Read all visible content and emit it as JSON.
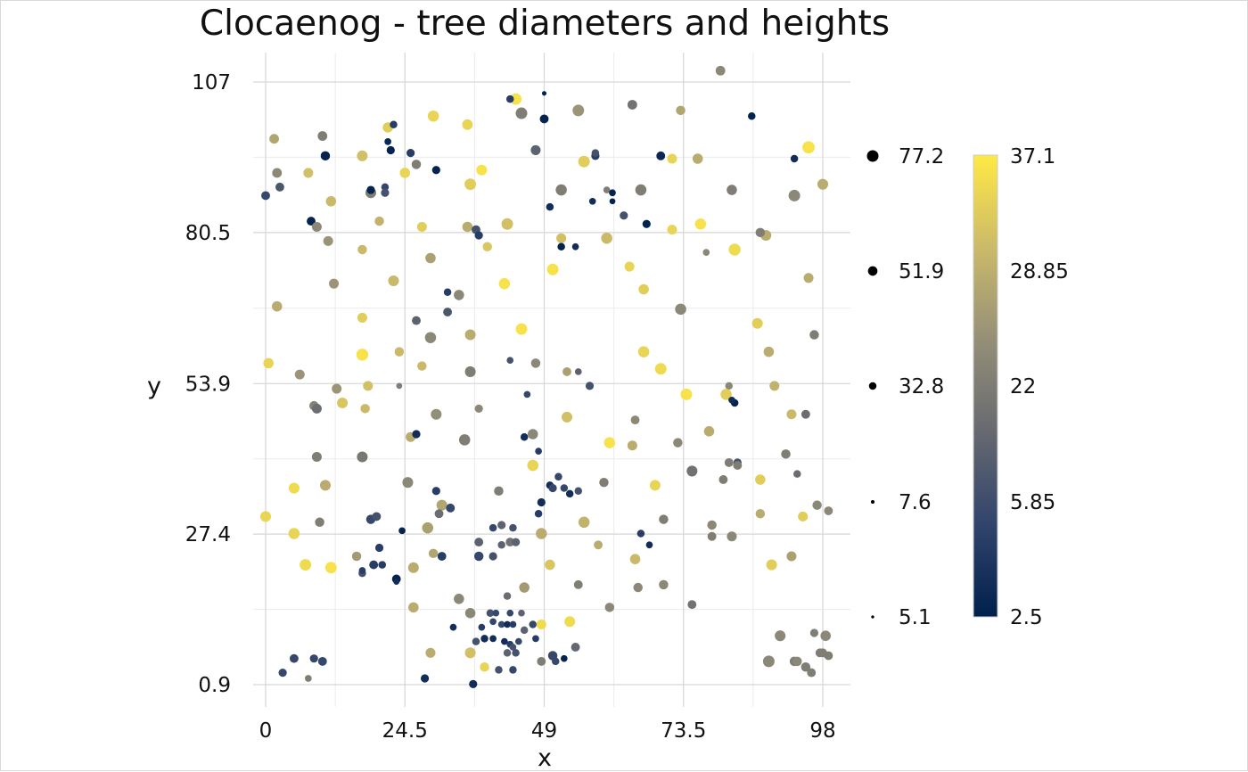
{
  "chart_data": {
    "type": "scatter",
    "title": "Clocaenog - tree diameters and heights",
    "xlabel": "x",
    "ylabel": "y",
    "xlim": [
      -2.5,
      103
    ],
    "ylim": [
      -2,
      110
    ],
    "x_ticks": [
      0,
      24.5,
      49,
      73.5,
      98
    ],
    "x_tick_labels": [
      "0",
      "24.5",
      "49",
      "73.5",
      "98"
    ],
    "y_ticks": [
      0.9,
      27.4,
      53.9,
      80.5,
      107
    ],
    "y_tick_labels": [
      "0.9",
      "27.4",
      "53.9",
      "80.5",
      "107"
    ],
    "grid": true,
    "size_legend": {
      "title": "",
      "placement": "right",
      "values": [
        77.2,
        51.9,
        32.8,
        7.6,
        5.1
      ],
      "labels": [
        "77.2",
        "51.9",
        "32.8",
        "7.6",
        "5.1"
      ]
    },
    "color_legend": {
      "title": "",
      "placement": "right",
      "values": [
        37.1,
        28.85,
        22,
        5.85,
        2.5
      ],
      "labels": [
        "37.1",
        "28.85",
        "22",
        "5.85",
        "2.5"
      ],
      "min": 2.5,
      "max": 37.1,
      "colors": [
        "#00204d",
        "#31446b",
        "#666970",
        "#958f78",
        "#cbba69",
        "#ffe945"
      ]
    },
    "points": [
      [
        44,
        104,
        60,
        36
      ],
      [
        49,
        105,
        4,
        3
      ],
      [
        1.5,
        97,
        38,
        27
      ],
      [
        10,
        97.5,
        38,
        20
      ],
      [
        21.5,
        99,
        45,
        33
      ],
      [
        22.5,
        99.5,
        20,
        8
      ],
      [
        29.5,
        101,
        55,
        34
      ],
      [
        35.5,
        99.5,
        48,
        34
      ],
      [
        45,
        101.5,
        60,
        20
      ],
      [
        49,
        100.5,
        30,
        3
      ],
      [
        55,
        102,
        60,
        24
      ],
      [
        64.5,
        103,
        38,
        18
      ],
      [
        73,
        102,
        35,
        27
      ],
      [
        80,
        109,
        38,
        22
      ],
      [
        85.5,
        101,
        20,
        3
      ],
      [
        2,
        91,
        38,
        22
      ],
      [
        7.5,
        91,
        40,
        31
      ],
      [
        10.5,
        94,
        35,
        3
      ],
      [
        17,
        94,
        50,
        31
      ],
      [
        21.5,
        96.5,
        15,
        4
      ],
      [
        22,
        95,
        25,
        3
      ],
      [
        24.5,
        91,
        45,
        34
      ],
      [
        25.5,
        94.5,
        25,
        8
      ],
      [
        26.5,
        92.5,
        35,
        20
      ],
      [
        30,
        91.5,
        25,
        3
      ],
      [
        38,
        91.5,
        50,
        36
      ],
      [
        43,
        104,
        20,
        8
      ],
      [
        47.5,
        95,
        40,
        15
      ],
      [
        50,
        85,
        20,
        5
      ],
      [
        56,
        93,
        60,
        33
      ],
      [
        58,
        94,
        25,
        8
      ],
      [
        58,
        94.5,
        20,
        12
      ],
      [
        69.5,
        94,
        30,
        4
      ],
      [
        71.5,
        93.5,
        40,
        34
      ],
      [
        76,
        93.5,
        45,
        28
      ],
      [
        82,
        88,
        45,
        20
      ],
      [
        93,
        93.5,
        20,
        5
      ],
      [
        95.5,
        95.5,
        70,
        36
      ],
      [
        98,
        89,
        50,
        28
      ],
      [
        0,
        87,
        30,
        10
      ],
      [
        2.5,
        88.5,
        30,
        13
      ],
      [
        11.5,
        86,
        45,
        30
      ],
      [
        18.5,
        87.5,
        50,
        20
      ],
      [
        18.5,
        88,
        25,
        3
      ],
      [
        21,
        88.5,
        20,
        10
      ],
      [
        21,
        87.5,
        25,
        12
      ],
      [
        36,
        89,
        60,
        33
      ],
      [
        52,
        88,
        55,
        20
      ],
      [
        60,
        88,
        15,
        20
      ],
      [
        61,
        87.5,
        15,
        3
      ],
      [
        57.5,
        86,
        15,
        5
      ],
      [
        61,
        86,
        10,
        3
      ],
      [
        66,
        88,
        55,
        20
      ],
      [
        88,
        80,
        50,
        28
      ],
      [
        93,
        87,
        60,
        22
      ],
      [
        8,
        82.5,
        30,
        3
      ],
      [
        9,
        81.5,
        40,
        22
      ],
      [
        20,
        82.5,
        35,
        29
      ],
      [
        27.5,
        81.5,
        40,
        33
      ],
      [
        35.5,
        81.5,
        45,
        28
      ],
      [
        37,
        81,
        30,
        12
      ],
      [
        37.5,
        80,
        25,
        8
      ],
      [
        42.5,
        82,
        60,
        31
      ],
      [
        52,
        79.5,
        40,
        31
      ],
      [
        60,
        79.5,
        55,
        30
      ],
      [
        63,
        83.5,
        25,
        12
      ],
      [
        67,
        82,
        25,
        3
      ],
      [
        71.5,
        81,
        40,
        34
      ],
      [
        76.5,
        82,
        55,
        36
      ],
      [
        87,
        80.5,
        35,
        20
      ],
      [
        52,
        78,
        20,
        3
      ],
      [
        54.5,
        78,
        15,
        5
      ],
      [
        11,
        79,
        40,
        24
      ],
      [
        17,
        77.5,
        35,
        30
      ],
      [
        29,
        76,
        45,
        26
      ],
      [
        39,
        78,
        35,
        32
      ],
      [
        64,
        74.5,
        40,
        34
      ],
      [
        50.5,
        74,
        60,
        36
      ],
      [
        77.5,
        77,
        15,
        22
      ],
      [
        82.5,
        77.5,
        65,
        35
      ],
      [
        12,
        71.5,
        40,
        24
      ],
      [
        22.5,
        72,
        50,
        30
      ],
      [
        32,
        70,
        20,
        8
      ],
      [
        34,
        69.5,
        45,
        22
      ],
      [
        42,
        71.5,
        55,
        36
      ],
      [
        66.5,
        70.5,
        45,
        33
      ],
      [
        95.5,
        72.5,
        40,
        28
      ],
      [
        2,
        67.5,
        45,
        28
      ],
      [
        17,
        65.5,
        40,
        33
      ],
      [
        26.5,
        65,
        30,
        15
      ],
      [
        32,
        66.5,
        30,
        13
      ],
      [
        29,
        62,
        55,
        22
      ],
      [
        36,
        62.5,
        50,
        28
      ],
      [
        45,
        63.5,
        60,
        36
      ],
      [
        73,
        67,
        55,
        22
      ],
      [
        86.5,
        64.5,
        50,
        33
      ],
      [
        96.5,
        62.5,
        35,
        20
      ],
      [
        0.5,
        57.5,
        45,
        34
      ],
      [
        6,
        55.5,
        40,
        24
      ],
      [
        17,
        59,
        65,
        36
      ],
      [
        27.5,
        57,
        35,
        30
      ],
      [
        23.5,
        59.5,
        35,
        30
      ],
      [
        36,
        56,
        50,
        20
      ],
      [
        47.5,
        57.5,
        35,
        22
      ],
      [
        53,
        56,
        30,
        26
      ],
      [
        55,
        56,
        15,
        15
      ],
      [
        66.5,
        59.5,
        55,
        34
      ],
      [
        69.5,
        56.5,
        60,
        35
      ],
      [
        88.5,
        59.5,
        45,
        28
      ],
      [
        12.5,
        53,
        40,
        24
      ],
      [
        18,
        53.5,
        40,
        31
      ],
      [
        23.5,
        53.5,
        10,
        20
      ],
      [
        43,
        58,
        15,
        12
      ],
      [
        46,
        52,
        15,
        10
      ],
      [
        57,
        53.5,
        25,
        12
      ],
      [
        74,
        52,
        60,
        36
      ],
      [
        81.5,
        53.5,
        20,
        22
      ],
      [
        81,
        52,
        55,
        33
      ],
      [
        89.5,
        53.5,
        40,
        29
      ],
      [
        82.5,
        50.5,
        20,
        3
      ],
      [
        82,
        51,
        15,
        5
      ],
      [
        8.5,
        50,
        35,
        21
      ],
      [
        9,
        49.5,
        40,
        17
      ],
      [
        13.5,
        50.5,
        50,
        32
      ],
      [
        17.5,
        49.5,
        35,
        30
      ],
      [
        30,
        48.5,
        50,
        23
      ],
      [
        37.5,
        49.5,
        25,
        22
      ],
      [
        53,
        48,
        50,
        31
      ],
      [
        65,
        47.5,
        30,
        22
      ],
      [
        92.5,
        48.5,
        40,
        30
      ],
      [
        95,
        48.5,
        30,
        17
      ],
      [
        25.5,
        44.5,
        40,
        28
      ],
      [
        26.5,
        45,
        25,
        5
      ],
      [
        35,
        44,
        55,
        20
      ],
      [
        45.5,
        44.5,
        20,
        5
      ],
      [
        47,
        45,
        45,
        22
      ],
      [
        60.5,
        43.5,
        55,
        36
      ],
      [
        64.5,
        43,
        40,
        28
      ],
      [
        72.5,
        43.5,
        35,
        22
      ],
      [
        78,
        45.5,
        45,
        28
      ],
      [
        48,
        42,
        15,
        8
      ],
      [
        9,
        41,
        40,
        20
      ],
      [
        17,
        41,
        50,
        19
      ],
      [
        47,
        39.5,
        55,
        34
      ],
      [
        51.5,
        37.5,
        20,
        10
      ],
      [
        81.5,
        40,
        30,
        20
      ],
      [
        83,
        40,
        25,
        12
      ],
      [
        83,
        39.5,
        30,
        20
      ],
      [
        91.5,
        41.5,
        35,
        20
      ],
      [
        93.5,
        38,
        20,
        17
      ],
      [
        75,
        38.5,
        50,
        18
      ],
      [
        80.5,
        37,
        30,
        20
      ],
      [
        87,
        37,
        45,
        33
      ],
      [
        25,
        36.5,
        50,
        22
      ],
      [
        30,
        35,
        25,
        8
      ],
      [
        31,
        32.5,
        50,
        27
      ],
      [
        32.5,
        32,
        30,
        10
      ],
      [
        30.5,
        31,
        30,
        17
      ],
      [
        41,
        35,
        35,
        20
      ],
      [
        50,
        36,
        20,
        5
      ],
      [
        50.5,
        35.5,
        25,
        10
      ],
      [
        52.5,
        35.5,
        20,
        10
      ],
      [
        53.5,
        34.5,
        20,
        5
      ],
      [
        55,
        35,
        20,
        12
      ],
      [
        59.5,
        36.5,
        35,
        20
      ],
      [
        68.5,
        36,
        50,
        34
      ],
      [
        5,
        35.5,
        50,
        35
      ],
      [
        10.5,
        36,
        50,
        28
      ],
      [
        97,
        32.5,
        35,
        22
      ],
      [
        99,
        31.5,
        30,
        22
      ],
      [
        94.5,
        30.5,
        40,
        33
      ],
      [
        48.5,
        33,
        25,
        5
      ],
      [
        48,
        31,
        20,
        8
      ],
      [
        0,
        30.5,
        50,
        34
      ],
      [
        18.5,
        30,
        35,
        10
      ],
      [
        19.5,
        30.5,
        30,
        12
      ],
      [
        24,
        28,
        15,
        3
      ],
      [
        28.5,
        28.5,
        55,
        26
      ],
      [
        40,
        28.5,
        20,
        10
      ],
      [
        41.5,
        29,
        25,
        15
      ],
      [
        43.5,
        28.5,
        20,
        12
      ],
      [
        48.5,
        27.5,
        55,
        28
      ],
      [
        56,
        29.5,
        55,
        29
      ],
      [
        70,
        30,
        35,
        20
      ],
      [
        78.5,
        29,
        35,
        22
      ],
      [
        87,
        31,
        35,
        28
      ],
      [
        9.5,
        29.5,
        35,
        20
      ],
      [
        5,
        27.5,
        55,
        34
      ],
      [
        41.5,
        25.5,
        20,
        15
      ],
      [
        58.5,
        25.5,
        30,
        28
      ],
      [
        66,
        27.5,
        20,
        8
      ],
      [
        67.5,
        25.5,
        15,
        5
      ],
      [
        78.5,
        27,
        30,
        20
      ],
      [
        82,
        27,
        40,
        22
      ],
      [
        37.5,
        26,
        30,
        15
      ],
      [
        43,
        26,
        30,
        18
      ],
      [
        44,
        26,
        25,
        15
      ],
      [
        16,
        23.5,
        35,
        25
      ],
      [
        20,
        25,
        25,
        8
      ],
      [
        29.5,
        24,
        35,
        27
      ],
      [
        31,
        23.5,
        30,
        8
      ],
      [
        37.5,
        23.5,
        35,
        10
      ],
      [
        40,
        23.5,
        25,
        12
      ],
      [
        65,
        23,
        45,
        30
      ],
      [
        92.5,
        23.5,
        40,
        26
      ],
      [
        89,
        22,
        50,
        33
      ],
      [
        7,
        22,
        60,
        35
      ],
      [
        11.5,
        21.5,
        60,
        36
      ],
      [
        17,
        20.5,
        20,
        12
      ],
      [
        19,
        22,
        30,
        8
      ],
      [
        20.5,
        22,
        20,
        8
      ],
      [
        23,
        19.5,
        30,
        3
      ],
      [
        26,
        21.5,
        50,
        28
      ],
      [
        50,
        22,
        45,
        32
      ],
      [
        45.5,
        18,
        45,
        25
      ],
      [
        42.5,
        16.5,
        20,
        17
      ],
      [
        65.5,
        18,
        35,
        22
      ],
      [
        70,
        18.5,
        35,
        22
      ],
      [
        17,
        21,
        15,
        8
      ],
      [
        23,
        19,
        10,
        5
      ],
      [
        26,
        14.5,
        45,
        28
      ],
      [
        36,
        13.5,
        45,
        22
      ],
      [
        39.5,
        13.5,
        20,
        12
      ],
      [
        40.5,
        13.5,
        15,
        10
      ],
      [
        43,
        13.5,
        15,
        10
      ],
      [
        45,
        13.5,
        15,
        15
      ],
      [
        60.5,
        14.5,
        35,
        22
      ],
      [
        75,
        15,
        30,
        18
      ],
      [
        33,
        11,
        15,
        5
      ],
      [
        38,
        11,
        15,
        8
      ],
      [
        40,
        12,
        15,
        10
      ],
      [
        41.5,
        11.5,
        15,
        10
      ],
      [
        42.5,
        11.5,
        15,
        5
      ],
      [
        43.5,
        11.5,
        15,
        8
      ],
      [
        45.5,
        10.5,
        20,
        15
      ],
      [
        47,
        11.5,
        20,
        10
      ],
      [
        48.5,
        11.5,
        40,
        35
      ],
      [
        53.5,
        12,
        50,
        35
      ],
      [
        37,
        8.5,
        20,
        12
      ],
      [
        38.5,
        9,
        20,
        5
      ],
      [
        40,
        9,
        15,
        5
      ],
      [
        42,
        8.5,
        15,
        5
      ],
      [
        43,
        8,
        15,
        8
      ],
      [
        44.5,
        8.5,
        15,
        10
      ],
      [
        47.5,
        9,
        15,
        8
      ],
      [
        43.5,
        7.5,
        15,
        12
      ],
      [
        42.5,
        6.5,
        20,
        15
      ],
      [
        44,
        6.5,
        20,
        12
      ],
      [
        29,
        6.5,
        40,
        28
      ],
      [
        36,
        6.5,
        50,
        31
      ],
      [
        48.5,
        5,
        30,
        20
      ],
      [
        50.5,
        6,
        35,
        10
      ],
      [
        51,
        5,
        20,
        10
      ],
      [
        52.5,
        5.5,
        15,
        3
      ],
      [
        54.5,
        7.5,
        30,
        16
      ],
      [
        41,
        3.5,
        20,
        12
      ],
      [
        43.5,
        3.5,
        20,
        10
      ],
      [
        38.5,
        4,
        35,
        34
      ],
      [
        5,
        5.5,
        30,
        10
      ],
      [
        8.5,
        5.5,
        25,
        10
      ],
      [
        10,
        5,
        30,
        10
      ],
      [
        3,
        3,
        25,
        10
      ],
      [
        7.5,
        2,
        15,
        20
      ],
      [
        28,
        2,
        25,
        5
      ],
      [
        36.5,
        1,
        25,
        5
      ],
      [
        88.5,
        5,
        60,
        22
      ],
      [
        90.5,
        9.5,
        50,
        22
      ],
      [
        93,
        5,
        35,
        20
      ],
      [
        93.5,
        5,
        35,
        22
      ],
      [
        95,
        4,
        35,
        20
      ],
      [
        96,
        3,
        30,
        20
      ],
      [
        97.5,
        6.5,
        30,
        20
      ],
      [
        98,
        6.5,
        30,
        20
      ],
      [
        98.5,
        9.5,
        45,
        22
      ],
      [
        96.5,
        10,
        25,
        20
      ],
      [
        34,
        16,
        45,
        22
      ],
      [
        55,
        18.5,
        30,
        20
      ],
      [
        99,
        6,
        30,
        20
      ]
    ]
  }
}
